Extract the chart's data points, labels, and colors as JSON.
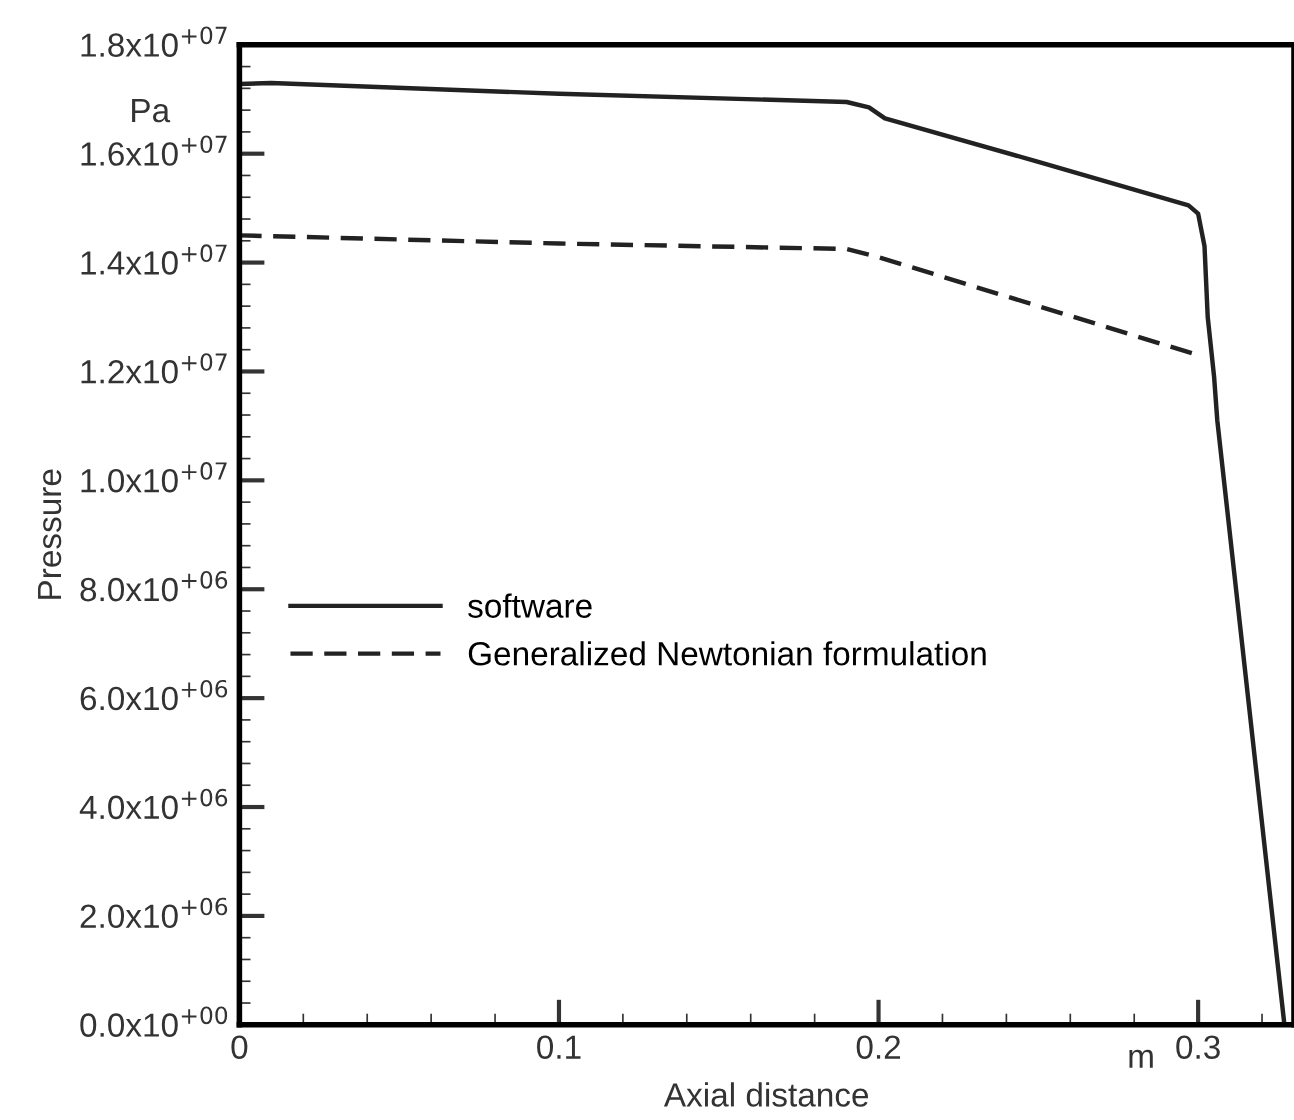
{
  "chart_data": {
    "type": "line",
    "xlabel": "Axial distance",
    "ylabel": "Pressure",
    "annotations": [
      "Pa",
      "m"
    ],
    "xlim": [
      0,
      0.33
    ],
    "ylim": [
      0,
      18000000
    ],
    "xticks": [
      0,
      0.1,
      0.2,
      0.3
    ],
    "yticks": [
      {
        "value": 0,
        "label": "0.0x10$^{+00}$"
      },
      {
        "value": 2000000,
        "label": "2.0x10$^{+06}$"
      },
      {
        "value": 4000000,
        "label": "4.0x10$^{+06}$"
      },
      {
        "value": 6000000,
        "label": "6.0x10$^{+06}$"
      },
      {
        "value": 8000000,
        "label": "8.0x10$^{+06}$"
      },
      {
        "value": 10000000,
        "label": "1.0x10$^{+07}$"
      },
      {
        "value": 12000000,
        "label": "1.2x10$^{+07}$"
      },
      {
        "value": 14000000,
        "label": "1.4x10$^{+07}$"
      },
      {
        "value": 16000000,
        "label": "1.6x10$^{+07}$"
      },
      {
        "value": 18000000,
        "label": "1.8x10$^{+07}$"
      }
    ],
    "grid": false,
    "legend": "center left",
    "series": [
      {
        "name": "software",
        "color": "#222222",
        "line_style": "solid",
        "x": [
          0,
          0.01,
          0.1,
          0.19,
          0.197,
          0.202,
          0.25,
          0.297,
          0.3,
          0.302,
          0.303,
          0.305,
          0.306,
          0.327
        ],
        "values": [
          17280000,
          17300000,
          17100000,
          16950000,
          16850000,
          16650000,
          15850000,
          15050000,
          14900000,
          14300000,
          13000000,
          11900000,
          11100000,
          0
        ]
      },
      {
        "name": "Generalized Newtonian formulation",
        "color": "#222222",
        "line_style": "dashed",
        "x": [
          0,
          0.1,
          0.19,
          0.2,
          0.25,
          0.3
        ],
        "values": [
          14500000,
          14350000,
          14250000,
          14100000,
          13200000,
          12300000
        ]
      }
    ]
  }
}
